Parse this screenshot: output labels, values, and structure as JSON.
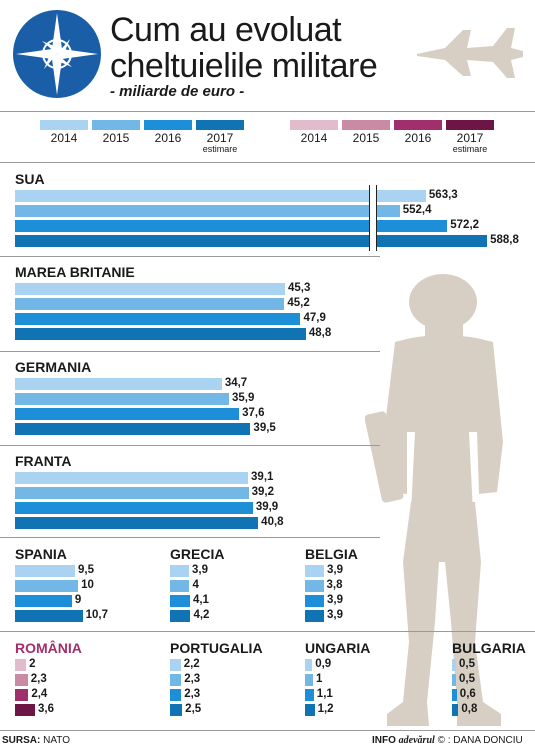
{
  "header": {
    "title_line1": "Cum au evoluat",
    "title_line2": "cheltuielile militare",
    "subtitle": "- miliarde de euro -"
  },
  "legend": {
    "nato": [
      {
        "year": "2014",
        "color": "#a9d3f0"
      },
      {
        "year": "2015",
        "color": "#73b7e6"
      },
      {
        "year": "2016",
        "color": "#1c8fd8"
      },
      {
        "year": "2017",
        "note": "estimare",
        "color": "#1073b4"
      }
    ],
    "romania": [
      {
        "year": "2014",
        "color": "#e2bccb"
      },
      {
        "year": "2015",
        "color": "#c98aa4"
      },
      {
        "year": "2016",
        "color": "#a12f6c"
      },
      {
        "year": "2017",
        "note": "estimare",
        "color": "#6d1545"
      }
    ]
  },
  "chart_data": {
    "type": "bar",
    "series_years": [
      "2014",
      "2015",
      "2016",
      "2017 estimare"
    ],
    "unit": "miliarde de euro",
    "countries": [
      {
        "name": "SUA",
        "values": [
          563.3,
          552.4,
          572.2,
          588.8
        ],
        "labels": [
          "563,3",
          "552,4",
          "572,2",
          "588,8"
        ],
        "axis_break": true
      },
      {
        "name": "MAREA BRITANIE",
        "values": [
          45.3,
          45.2,
          47.9,
          48.8
        ],
        "labels": [
          "45,3",
          "45,2",
          "47,9",
          "48,8"
        ]
      },
      {
        "name": "GERMANIA",
        "values": [
          34.7,
          35.9,
          37.6,
          39.5
        ],
        "labels": [
          "34,7",
          "35,9",
          "37,6",
          "39,5"
        ]
      },
      {
        "name": "FRANTA",
        "values": [
          39.1,
          39.2,
          39.9,
          40.8
        ],
        "labels": [
          "39,1",
          "39,2",
          "39,9",
          "40,8"
        ]
      },
      {
        "name": "SPANIA",
        "values": [
          9.5,
          10,
          9,
          10.7
        ],
        "labels": [
          "9,5",
          "10",
          "9",
          "10,7"
        ]
      },
      {
        "name": "GRECIA",
        "values": [
          3.9,
          4,
          4.1,
          4.2
        ],
        "labels": [
          "3,9",
          "4",
          "4,1",
          "4,2"
        ]
      },
      {
        "name": "BELGIA",
        "values": [
          3.9,
          3.8,
          3.9,
          3.9
        ],
        "labels": [
          "3,9",
          "3,8",
          "3,9",
          "3,9"
        ]
      },
      {
        "name": "ROMÂNIA",
        "values": [
          2,
          2.3,
          2.4,
          3.6
        ],
        "labels": [
          "2",
          "2,3",
          "2,4",
          "3,6"
        ],
        "highlight": true
      },
      {
        "name": "PORTUGALIA",
        "values": [
          2.2,
          2.3,
          2.3,
          2.5
        ],
        "labels": [
          "2,2",
          "2,3",
          "2,3",
          "2,5"
        ]
      },
      {
        "name": "UNGARIA",
        "values": [
          0.9,
          1,
          1.1,
          1.2
        ],
        "labels": [
          "0,9",
          "1",
          "1,1",
          "1,2"
        ]
      },
      {
        "name": "BULGARIA",
        "values": [
          0.5,
          0.5,
          0.6,
          0.8
        ],
        "labels": [
          "0,5",
          "0,5",
          "0,6",
          "0,8"
        ]
      }
    ]
  },
  "footer": {
    "source_label": "SURSA:",
    "source_value": "NATO",
    "info_label": "INFO",
    "brand": "adevărul",
    "credit": ": DANA DONCIU"
  },
  "colors": {
    "highlight_text": "#a12f6c",
    "silhouette": "#d8cfc4"
  }
}
